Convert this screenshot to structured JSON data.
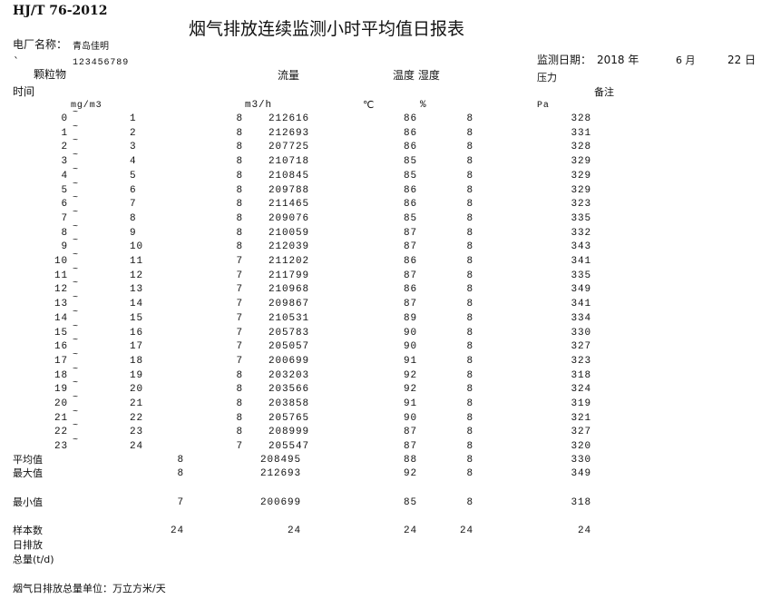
{
  "header": {
    "standard": "HJ/T 76-2012",
    "title": "烟气排放连续监测小时平均值日报表",
    "plant_label": "电厂名称：",
    "plant_name": "青岛佳明",
    "backtick": "`",
    "plant_code": "123456789",
    "date_label": "监测日期：",
    "year": "2018 年",
    "month": "6 月",
    "day": "22 日"
  },
  "columns": {
    "time": "时间",
    "dust": "颗粒物",
    "dust_unit": "mg/m3",
    "flow": "流量",
    "flow_unit": "m3/h",
    "temp_humidity": "温度 湿度",
    "temp_unit": "℃",
    "humidity_unit": "%",
    "pressure": "压力",
    "pressure_unit": "Pa",
    "remark": "备注"
  },
  "rows": [
    {
      "start": "0",
      "sep": "~",
      "end": "1",
      "dust": "8",
      "flow": "212616",
      "temp": "86",
      "humidity": "8",
      "pressure": "328"
    },
    {
      "start": "1",
      "sep": "~",
      "end": "2",
      "dust": "8",
      "flow": "212693",
      "temp": "86",
      "humidity": "8",
      "pressure": "331"
    },
    {
      "start": "2",
      "sep": "~",
      "end": "3",
      "dust": "8",
      "flow": "207725",
      "temp": "86",
      "humidity": "8",
      "pressure": "328"
    },
    {
      "start": "3",
      "sep": "~",
      "end": "4",
      "dust": "8",
      "flow": "210718",
      "temp": "85",
      "humidity": "8",
      "pressure": "329"
    },
    {
      "start": "4",
      "sep": "~",
      "end": "5",
      "dust": "8",
      "flow": "210845",
      "temp": "85",
      "humidity": "8",
      "pressure": "329"
    },
    {
      "start": "5",
      "sep": "~",
      "end": "6",
      "dust": "8",
      "flow": "209788",
      "temp": "86",
      "humidity": "8",
      "pressure": "329"
    },
    {
      "start": "6",
      "sep": "~",
      "end": "7",
      "dust": "8",
      "flow": "211465",
      "temp": "86",
      "humidity": "8",
      "pressure": "323"
    },
    {
      "start": "7",
      "sep": "~",
      "end": "8",
      "dust": "8",
      "flow": "209076",
      "temp": "85",
      "humidity": "8",
      "pressure": "335"
    },
    {
      "start": "8",
      "sep": "~",
      "end": "9",
      "dust": "8",
      "flow": "210059",
      "temp": "87",
      "humidity": "8",
      "pressure": "332"
    },
    {
      "start": "9",
      "sep": "~",
      "end": "10",
      "dust": "8",
      "flow": "212039",
      "temp": "87",
      "humidity": "8",
      "pressure": "343"
    },
    {
      "start": "10",
      "sep": "~",
      "end": "11",
      "dust": "7",
      "flow": "211202",
      "temp": "86",
      "humidity": "8",
      "pressure": "341"
    },
    {
      "start": "11",
      "sep": "~",
      "end": "12",
      "dust": "7",
      "flow": "211799",
      "temp": "87",
      "humidity": "8",
      "pressure": "335"
    },
    {
      "start": "12",
      "sep": "~",
      "end": "13",
      "dust": "7",
      "flow": "210968",
      "temp": "86",
      "humidity": "8",
      "pressure": "349"
    },
    {
      "start": "13",
      "sep": "~",
      "end": "14",
      "dust": "7",
      "flow": "209867",
      "temp": "87",
      "humidity": "8",
      "pressure": "341"
    },
    {
      "start": "14",
      "sep": "~",
      "end": "15",
      "dust": "7",
      "flow": "210531",
      "temp": "89",
      "humidity": "8",
      "pressure": "334"
    },
    {
      "start": "15",
      "sep": "~",
      "end": "16",
      "dust": "7",
      "flow": "205783",
      "temp": "90",
      "humidity": "8",
      "pressure": "330"
    },
    {
      "start": "16",
      "sep": "~",
      "end": "17",
      "dust": "7",
      "flow": "205057",
      "temp": "90",
      "humidity": "8",
      "pressure": "327"
    },
    {
      "start": "17",
      "sep": "~",
      "end": "18",
      "dust": "7",
      "flow": "200699",
      "temp": "91",
      "humidity": "8",
      "pressure": "323"
    },
    {
      "start": "18",
      "sep": "~",
      "end": "19",
      "dust": "8",
      "flow": "203203",
      "temp": "92",
      "humidity": "8",
      "pressure": "318"
    },
    {
      "start": "19",
      "sep": "~",
      "end": "20",
      "dust": "8",
      "flow": "203566",
      "temp": "92",
      "humidity": "8",
      "pressure": "324"
    },
    {
      "start": "20",
      "sep": "~",
      "end": "21",
      "dust": "8",
      "flow": "203858",
      "temp": "91",
      "humidity": "8",
      "pressure": "319"
    },
    {
      "start": "21",
      "sep": "~",
      "end": "22",
      "dust": "8",
      "flow": "205765",
      "temp": "90",
      "humidity": "8",
      "pressure": "321"
    },
    {
      "start": "22",
      "sep": "~",
      "end": "23",
      "dust": "8",
      "flow": "208999",
      "temp": "87",
      "humidity": "8",
      "pressure": "327"
    },
    {
      "start": "23",
      "sep": "~",
      "end": "24",
      "dust": "7",
      "flow": "205547",
      "temp": "87",
      "humidity": "8",
      "pressure": "320"
    }
  ],
  "summary": [
    {
      "label": "平均值",
      "dust": "8",
      "flow": "208495",
      "temp": "88",
      "humidity": "8",
      "pressure": "330"
    },
    {
      "label": "最大值",
      "dust": "8",
      "flow": "212693",
      "temp": "92",
      "humidity": "8",
      "pressure": "349"
    },
    {
      "label": "最小值",
      "dust": "7",
      "flow": "200699",
      "temp": "85",
      "humidity": "8",
      "pressure": "318"
    },
    {
      "label": "样本数",
      "dust": "24",
      "flow": "24",
      "temp": "24",
      "humidity": "24",
      "pressure": "24"
    }
  ],
  "daily_total": {
    "label_line1": "日排放",
    "label_line2": "总量(t/d)"
  },
  "footer": "烟气日排放总量单位：万立方米/天"
}
